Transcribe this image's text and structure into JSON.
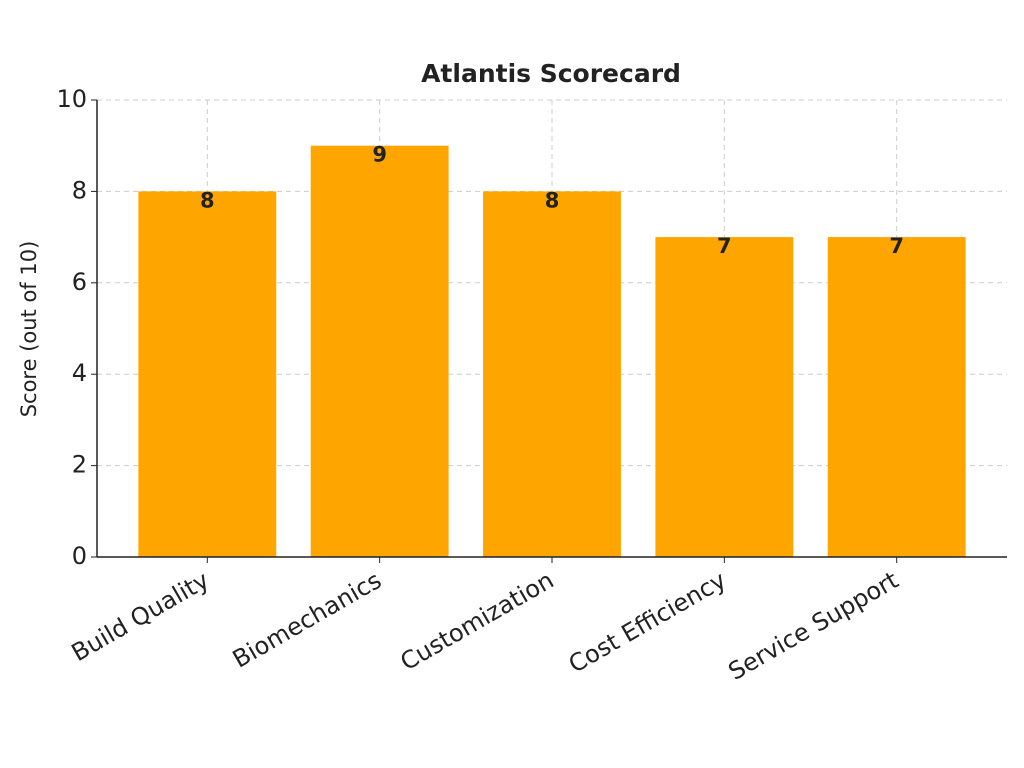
{
  "chart_data": {
    "type": "bar",
    "title": "Atlantis Scorecard",
    "y_label": "Score (out of 10)",
    "categories": [
      "Build Quality",
      "Biomechanics",
      "Customization",
      "Cost Efficiency",
      "Service Support"
    ],
    "values": [
      8,
      9,
      8,
      7,
      7
    ],
    "color": "#ffa500",
    "ylim": [
      0,
      10
    ],
    "yticks": [
      0,
      2,
      4,
      6,
      8,
      10
    ],
    "grid": true,
    "show_values": true
  }
}
